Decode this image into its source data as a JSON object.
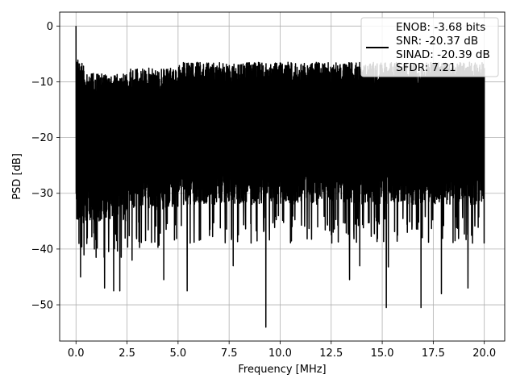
{
  "chart_data": {
    "type": "line",
    "xlabel": "Frequency [MHz]",
    "ylabel": "PSD [dB]",
    "xlim": [
      -0.8,
      21.0
    ],
    "ylim": [
      -56.5,
      2.5
    ],
    "xticks": [
      0.0,
      2.5,
      5.0,
      7.5,
      10.0,
      12.5,
      15.0,
      17.5,
      20.0
    ],
    "xtick_labels": [
      "0.0",
      "2.5",
      "5.0",
      "7.5",
      "10.0",
      "12.5",
      "15.0",
      "17.5",
      "20.0"
    ],
    "yticks": [
      0,
      -10,
      -20,
      -30,
      -40,
      -50
    ],
    "ytick_labels": [
      "0",
      "−10",
      "−20",
      "−30",
      "−40",
      "−50"
    ],
    "grid": true,
    "legend_position": "top-right",
    "series": [
      {
        "name": "ENOB: -3.68 bits\nSNR: -20.37 dB\nSINAD: -20.39 dB\nSFDR: 7.21",
        "legend_lines": [
          "ENOB: -3.68 bits",
          "SNR: -20.37 dB",
          "SINAD: -20.39 dB",
          "SFDR: 7.21"
        ],
        "color": "#000000",
        "x_start": 0.0,
        "x_end": 20.0,
        "features": [
          {
            "x": 0.0,
            "y": 0.0
          },
          {
            "x": 0.15,
            "y": -39
          },
          {
            "x": 0.22,
            "y": -45
          },
          {
            "x": 0.55,
            "y": -38
          },
          {
            "x": 0.9,
            "y": -40
          },
          {
            "x": 1.4,
            "y": -47
          },
          {
            "x": 1.85,
            "y": -47.5
          },
          {
            "x": 2.15,
            "y": -47.5
          },
          {
            "x": 2.75,
            "y": -42
          },
          {
            "x": 4.3,
            "y": -45.5
          },
          {
            "x": 5.45,
            "y": -47.5
          },
          {
            "x": 7.7,
            "y": -43
          },
          {
            "x": 9.3,
            "y": -54
          },
          {
            "x": 13.4,
            "y": -45.5
          },
          {
            "x": 13.9,
            "y": -43
          },
          {
            "x": 15.2,
            "y": -50.5
          },
          {
            "x": 15.3,
            "y": -43.2
          },
          {
            "x": 16.9,
            "y": -50.5
          },
          {
            "x": 17.9,
            "y": -48
          },
          {
            "x": 19.2,
            "y": -47
          }
        ]
      }
    ]
  }
}
